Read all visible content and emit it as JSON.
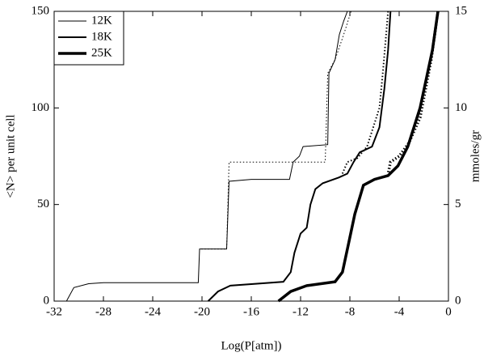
{
  "chart_data": {
    "type": "line",
    "xlabel": "Log(P[atm])",
    "ylabel": "<N> per unit cell",
    "y2label": "mmoles/gr",
    "xlim": [
      -32,
      0
    ],
    "xticks": [
      -32,
      -28,
      -24,
      -20,
      -16,
      -12,
      -8,
      -4,
      0
    ],
    "ylim": [
      0,
      150
    ],
    "yticks": [
      0,
      50,
      100,
      150
    ],
    "y2lim": [
      0,
      15
    ],
    "y2ticks": [
      0,
      5,
      10,
      15
    ],
    "legend": "upper left",
    "series": [
      {
        "name": "12K",
        "color": "#000000",
        "width": 1,
        "x": [
          -31,
          -30.4,
          -29.2,
          -28,
          -20.3,
          -20.2,
          -18,
          -17.8,
          -16,
          -12.9,
          -12.6,
          -12.1,
          -11.8,
          -9.8,
          -9.7,
          -9.2,
          -8.85,
          -8.5,
          -8.2
        ],
        "values": [
          0,
          7,
          9,
          9.5,
          9.5,
          27,
          27,
          62,
          63,
          63,
          72,
          75,
          80,
          81,
          118,
          125,
          138,
          145,
          150
        ],
        "dotted": {
          "x": [
            -7.9,
            -8.5,
            -9.2,
            -9.8,
            -10,
            -12.5,
            -17.8,
            -18,
            -20.2
          ],
          "values": [
            150,
            138,
            125,
            118,
            72,
            72,
            72,
            27,
            27
          ]
        }
      },
      {
        "name": "18K",
        "color": "#000000",
        "width": 2,
        "x": [
          -19.5,
          -18.7,
          -17.7,
          -13.4,
          -12.8,
          -12.5,
          -12,
          -11.5,
          -11.2,
          -10.8,
          -10.2,
          -8.9,
          -8.2,
          -7.7,
          -7.2,
          -6.2,
          -5.6,
          -5.2,
          -4.9,
          -4.7
        ],
        "values": [
          0,
          5,
          8,
          10,
          15,
          25,
          35,
          38,
          50,
          58,
          61,
          64,
          66,
          72,
          77,
          80,
          90,
          110,
          130,
          150
        ],
        "dotted": {
          "x": [
            -4.9,
            -5.3,
            -5.6,
            -6.6,
            -7.4,
            -8.2,
            -8.6
          ],
          "values": [
            150,
            120,
            100,
            80,
            74,
            72,
            66
          ]
        }
      },
      {
        "name": "25K",
        "color": "#000000",
        "width": 3.5,
        "x": [
          -13.8,
          -12.8,
          -11.5,
          -9.2,
          -8.6,
          -8.1,
          -7.6,
          -6.9,
          -6,
          -4.9,
          -4.1,
          -3.3,
          -2.3,
          -1.3,
          -0.85
        ],
        "values": [
          0,
          5,
          8,
          10,
          15,
          30,
          45,
          60,
          63,
          65,
          70,
          80,
          100,
          130,
          150
        ],
        "dotted": {
          "x": [
            -0.85,
            -1.4,
            -2.3,
            -3.2,
            -4,
            -4.7,
            -4.9
          ],
          "values": [
            150,
            125,
            95,
            82,
            75,
            72,
            66
          ]
        }
      }
    ]
  }
}
